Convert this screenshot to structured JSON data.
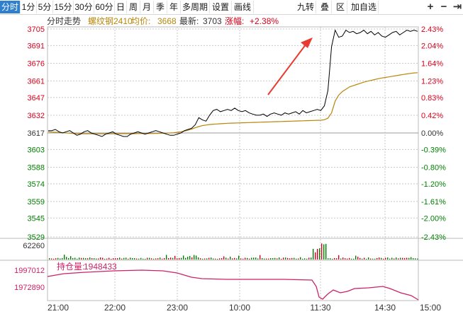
{
  "toolbar": {
    "left_buttons": [
      "分时",
      "1分",
      "5分",
      "15分",
      "30分",
      "60分",
      "日",
      "周",
      "月",
      "季",
      "年",
      "多周期",
      "设置",
      "画线"
    ],
    "active_index": 0,
    "right_buttons": [
      "九转",
      "叠",
      "区",
      "加自选"
    ],
    "icons": [
      "plus-icon",
      "minus-icon",
      "exit-to-right-icon"
    ]
  },
  "header": {
    "title": "分时走势",
    "name": "螺纹钢2410",
    "avg_label": "均价:",
    "avg_value": "3668",
    "latest_label": "最新:",
    "latest_value": "3703",
    "change_label": "涨幅:",
    "change_value": "+2.38%"
  },
  "volume": {
    "scale_label": "62260"
  },
  "open_interest": {
    "label": "持仓量:",
    "value": "1948433",
    "axis_labels": [
      "1997012",
      "1972890"
    ]
  },
  "colors": {
    "up": "#d9001b",
    "down": "#007f00",
    "price_line": "#000000",
    "avg_line": "#b8860b",
    "oi_line": "#cc2266",
    "arrow": "#e83a2f",
    "grid": "#c8c8c8"
  },
  "chart_data": {
    "type": "line",
    "title": "分时走势",
    "x_tick_labels": [
      "21:00",
      "22:00",
      "23:00",
      "10:00",
      "11:30",
      "14:30",
      "15:00"
    ],
    "y_price_ticks": [
      3705,
      3691,
      3676,
      3661,
      3647,
      3632,
      3617,
      3603,
      3588,
      3574,
      3559,
      3545,
      3529
    ],
    "y_pct_ticks": [
      "2.43%",
      "2.04%",
      "1.64%",
      "1.23%",
      "0.83%",
      "0.42%",
      "0.00%",
      "-0.39%",
      "-0.80%",
      "-1.20%",
      "-1.61%",
      "-2.00%",
      "-2.43%"
    ],
    "base_price": 3617,
    "ylim": [
      3529,
      3705
    ],
    "series": [
      {
        "name": "螺纹钢2410",
        "values": [
          3619,
          3619,
          3620,
          3618,
          3617,
          3618,
          3619,
          3617,
          3615,
          3616,
          3618,
          3619,
          3617,
          3616,
          3615,
          3614,
          3616,
          3617,
          3618,
          3616,
          3615,
          3614,
          3614,
          3616,
          3617,
          3618,
          3617,
          3616,
          3617,
          3618,
          3619,
          3618,
          3617,
          3616,
          3615,
          3615,
          3616,
          3617,
          3619,
          3620,
          3621,
          3624,
          3630,
          3628,
          3627,
          3632,
          3636,
          3637,
          3635,
          3636,
          3637,
          3636,
          3638,
          3636,
          3635,
          3636,
          3634,
          3633,
          3632,
          3632,
          3633,
          3631,
          3633,
          3634,
          3633,
          3632,
          3634,
          3633,
          3634,
          3635,
          3633,
          3636,
          3634,
          3635,
          3636,
          3637,
          3636,
          3640,
          3653,
          3690,
          3704,
          3698,
          3699,
          3704,
          3702,
          3703,
          3701,
          3702,
          3704,
          3701,
          3703,
          3700,
          3702,
          3699,
          3698,
          3700,
          3702,
          3703,
          3700,
          3702,
          3704,
          3703,
          3704,
          3703
        ]
      },
      {
        "name": "均价",
        "values": [
          3618,
          3617.8,
          3617.6,
          3617.4,
          3617.2,
          3617,
          3616.8,
          3616.6,
          3616.5,
          3616.4,
          3616.3,
          3616.3,
          3616.3,
          3616.3,
          3616.3,
          3616.3,
          3616.3,
          3616.3,
          3616.3,
          3616.3,
          3616.4,
          3616.4,
          3616.4,
          3616.4,
          3616.4,
          3616.5,
          3616.5,
          3616.5,
          3616.5,
          3616.6,
          3616.6,
          3616.7,
          3616.8,
          3616.9,
          3617,
          3617.2,
          3617.6,
          3618,
          3618.6,
          3619.4,
          3620.3,
          3621.4,
          3622.4,
          3623.2,
          3623.7,
          3624.1,
          3624.4,
          3624.6,
          3624.8,
          3625,
          3625.2,
          3625.3,
          3625.4,
          3625.5,
          3625.6,
          3625.7,
          3625.8,
          3625.9,
          3626,
          3626.1,
          3626.2,
          3626.3,
          3626.4,
          3626.5,
          3626.6,
          3626.7,
          3626.8,
          3626.9,
          3627,
          3627.1,
          3627.2,
          3627.3,
          3627.4,
          3627.5,
          3627.6,
          3627.7,
          3627.8,
          3628.2,
          3629.5,
          3634,
          3644,
          3649,
          3652,
          3654,
          3656,
          3657,
          3658,
          3659,
          3660,
          3660.8,
          3661.5,
          3662.2,
          3662.9,
          3663.5,
          3664,
          3664.5,
          3665,
          3665.5,
          3666,
          3666.5,
          3667,
          3667.4,
          3667.8,
          3668
        ]
      }
    ]
  }
}
